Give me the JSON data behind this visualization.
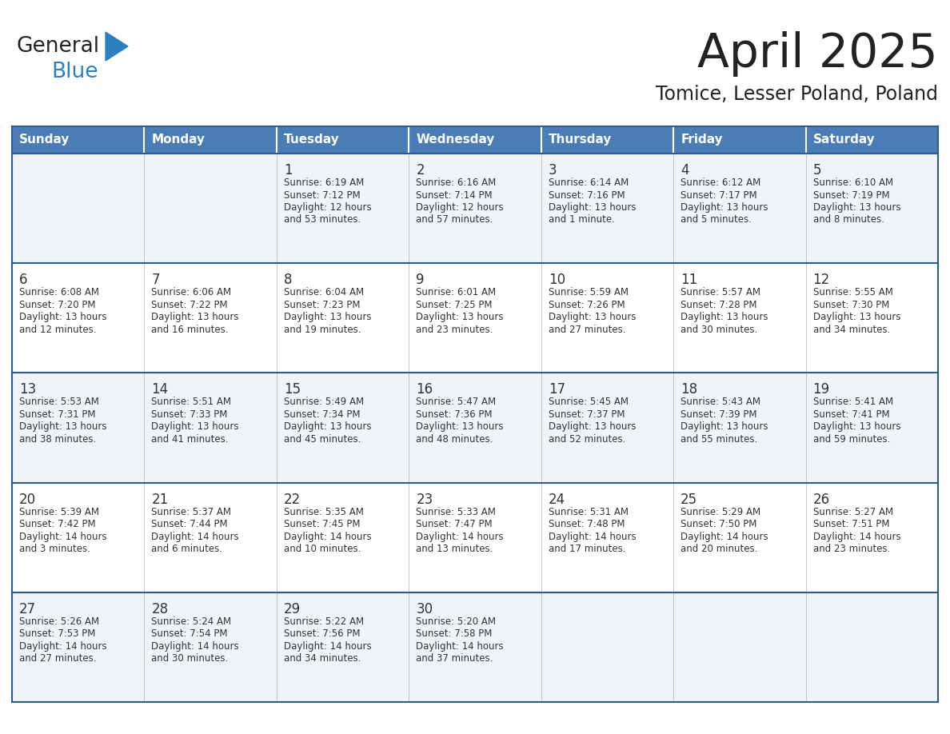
{
  "title": "April 2025",
  "subtitle": "Tomice, Lesser Poland, Poland",
  "header_color": "#4A7DB5",
  "header_text_color": "#FFFFFF",
  "cell_bg_even": "#F0F4F8",
  "cell_bg_odd": "#FFFFFF",
  "row_separator_color": "#2E5A8E",
  "cell_border_color": "#CCCCCC",
  "day_headers": [
    "Sunday",
    "Monday",
    "Tuesday",
    "Wednesday",
    "Thursday",
    "Friday",
    "Saturday"
  ],
  "weeks": [
    [
      {
        "day": "",
        "text": ""
      },
      {
        "day": "",
        "text": ""
      },
      {
        "day": "1",
        "text": "Sunrise: 6:19 AM\nSunset: 7:12 PM\nDaylight: 12 hours\nand 53 minutes."
      },
      {
        "day": "2",
        "text": "Sunrise: 6:16 AM\nSunset: 7:14 PM\nDaylight: 12 hours\nand 57 minutes."
      },
      {
        "day": "3",
        "text": "Sunrise: 6:14 AM\nSunset: 7:16 PM\nDaylight: 13 hours\nand 1 minute."
      },
      {
        "day": "4",
        "text": "Sunrise: 6:12 AM\nSunset: 7:17 PM\nDaylight: 13 hours\nand 5 minutes."
      },
      {
        "day": "5",
        "text": "Sunrise: 6:10 AM\nSunset: 7:19 PM\nDaylight: 13 hours\nand 8 minutes."
      }
    ],
    [
      {
        "day": "6",
        "text": "Sunrise: 6:08 AM\nSunset: 7:20 PM\nDaylight: 13 hours\nand 12 minutes."
      },
      {
        "day": "7",
        "text": "Sunrise: 6:06 AM\nSunset: 7:22 PM\nDaylight: 13 hours\nand 16 minutes."
      },
      {
        "day": "8",
        "text": "Sunrise: 6:04 AM\nSunset: 7:23 PM\nDaylight: 13 hours\nand 19 minutes."
      },
      {
        "day": "9",
        "text": "Sunrise: 6:01 AM\nSunset: 7:25 PM\nDaylight: 13 hours\nand 23 minutes."
      },
      {
        "day": "10",
        "text": "Sunrise: 5:59 AM\nSunset: 7:26 PM\nDaylight: 13 hours\nand 27 minutes."
      },
      {
        "day": "11",
        "text": "Sunrise: 5:57 AM\nSunset: 7:28 PM\nDaylight: 13 hours\nand 30 minutes."
      },
      {
        "day": "12",
        "text": "Sunrise: 5:55 AM\nSunset: 7:30 PM\nDaylight: 13 hours\nand 34 minutes."
      }
    ],
    [
      {
        "day": "13",
        "text": "Sunrise: 5:53 AM\nSunset: 7:31 PM\nDaylight: 13 hours\nand 38 minutes."
      },
      {
        "day": "14",
        "text": "Sunrise: 5:51 AM\nSunset: 7:33 PM\nDaylight: 13 hours\nand 41 minutes."
      },
      {
        "day": "15",
        "text": "Sunrise: 5:49 AM\nSunset: 7:34 PM\nDaylight: 13 hours\nand 45 minutes."
      },
      {
        "day": "16",
        "text": "Sunrise: 5:47 AM\nSunset: 7:36 PM\nDaylight: 13 hours\nand 48 minutes."
      },
      {
        "day": "17",
        "text": "Sunrise: 5:45 AM\nSunset: 7:37 PM\nDaylight: 13 hours\nand 52 minutes."
      },
      {
        "day": "18",
        "text": "Sunrise: 5:43 AM\nSunset: 7:39 PM\nDaylight: 13 hours\nand 55 minutes."
      },
      {
        "day": "19",
        "text": "Sunrise: 5:41 AM\nSunset: 7:41 PM\nDaylight: 13 hours\nand 59 minutes."
      }
    ],
    [
      {
        "day": "20",
        "text": "Sunrise: 5:39 AM\nSunset: 7:42 PM\nDaylight: 14 hours\nand 3 minutes."
      },
      {
        "day": "21",
        "text": "Sunrise: 5:37 AM\nSunset: 7:44 PM\nDaylight: 14 hours\nand 6 minutes."
      },
      {
        "day": "22",
        "text": "Sunrise: 5:35 AM\nSunset: 7:45 PM\nDaylight: 14 hours\nand 10 minutes."
      },
      {
        "day": "23",
        "text": "Sunrise: 5:33 AM\nSunset: 7:47 PM\nDaylight: 14 hours\nand 13 minutes."
      },
      {
        "day": "24",
        "text": "Sunrise: 5:31 AM\nSunset: 7:48 PM\nDaylight: 14 hours\nand 17 minutes."
      },
      {
        "day": "25",
        "text": "Sunrise: 5:29 AM\nSunset: 7:50 PM\nDaylight: 14 hours\nand 20 minutes."
      },
      {
        "day": "26",
        "text": "Sunrise: 5:27 AM\nSunset: 7:51 PM\nDaylight: 14 hours\nand 23 minutes."
      }
    ],
    [
      {
        "day": "27",
        "text": "Sunrise: 5:26 AM\nSunset: 7:53 PM\nDaylight: 14 hours\nand 27 minutes."
      },
      {
        "day": "28",
        "text": "Sunrise: 5:24 AM\nSunset: 7:54 PM\nDaylight: 14 hours\nand 30 minutes."
      },
      {
        "day": "29",
        "text": "Sunrise: 5:22 AM\nSunset: 7:56 PM\nDaylight: 14 hours\nand 34 minutes."
      },
      {
        "day": "30",
        "text": "Sunrise: 5:20 AM\nSunset: 7:58 PM\nDaylight: 14 hours\nand 37 minutes."
      },
      {
        "day": "",
        "text": ""
      },
      {
        "day": "",
        "text": ""
      },
      {
        "day": "",
        "text": ""
      }
    ]
  ],
  "logo_color_general": "#222222",
  "logo_color_blue": "#2E7FC0",
  "logo_triangle_color": "#2E7FC0",
  "title_color": "#222222",
  "subtitle_color": "#222222",
  "text_color": "#333333"
}
